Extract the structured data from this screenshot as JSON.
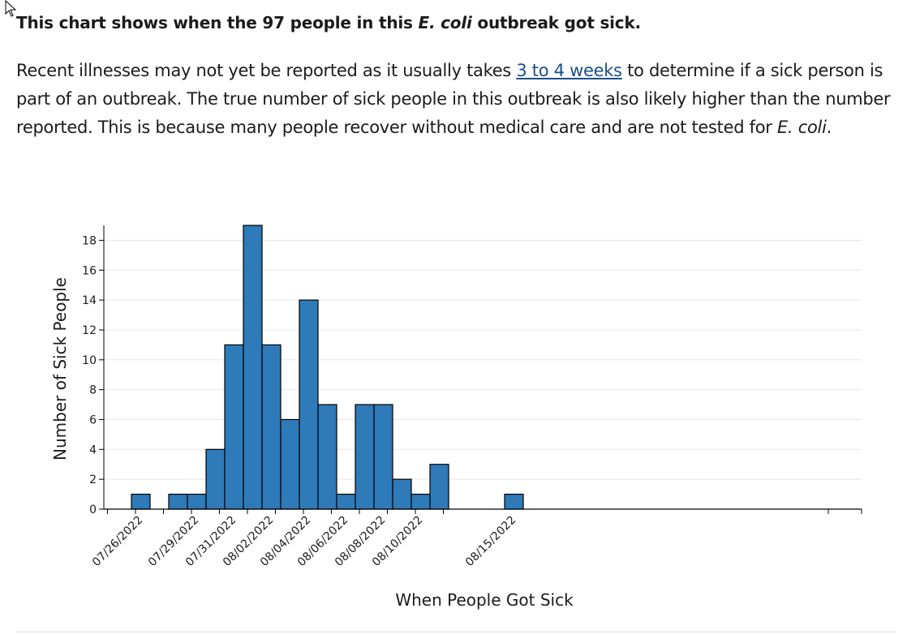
{
  "headline": {
    "pre": "This chart shows when the 97 people in this",
    "italic": "E. coli",
    "post": "outbreak got sick."
  },
  "intro": {
    "before_link": "Recent illnesses may not yet be reported as it usually takes",
    "link": "3 to 4 weeks",
    "after_link": "to determine if a sick person is part of an outbreak. The true number of sick people in this outbreak is also likely higher than the number reported. This is because many people recover without medical care and are not tested for",
    "italic": "E. coli",
    "end": "."
  },
  "colors": {
    "bar_fill": "#2f7ab8",
    "bar_stroke": "#000000",
    "gridline": "#e6e6e6",
    "link": "#1b4f8a"
  },
  "chart_data": {
    "type": "bar",
    "xlabel": "When People Got Sick",
    "ylabel": "Number of Sick People",
    "ylim": [
      0,
      19
    ],
    "yticks": [
      0,
      2,
      4,
      6,
      8,
      10,
      12,
      14,
      16,
      18
    ],
    "grid": true,
    "xrange": [
      "2022-07-26",
      "2022-08-31"
    ],
    "x_tick_labels": [
      "07/26/2022",
      "07/29/2022",
      "07/31/2022",
      "08/02/2022",
      "08/04/2022",
      "08/06/2022",
      "08/08/2022",
      "08/10/2022",
      "08/15/2022"
    ],
    "dates": [
      "2022-07-26",
      "2022-07-27",
      "2022-07-28",
      "2022-07-29",
      "2022-07-30",
      "2022-07-31",
      "2022-08-01",
      "2022-08-02",
      "2022-08-03",
      "2022-08-04",
      "2022-08-05",
      "2022-08-06",
      "2022-08-07",
      "2022-08-08",
      "2022-08-09",
      "2022-08-10",
      "2022-08-11",
      "2022-08-12",
      "2022-08-13",
      "2022-08-14",
      "2022-08-15"
    ],
    "values": [
      1,
      0,
      1,
      1,
      4,
      11,
      19,
      11,
      6,
      14,
      7,
      1,
      7,
      7,
      2,
      1,
      3,
      0,
      0,
      0,
      1
    ]
  }
}
